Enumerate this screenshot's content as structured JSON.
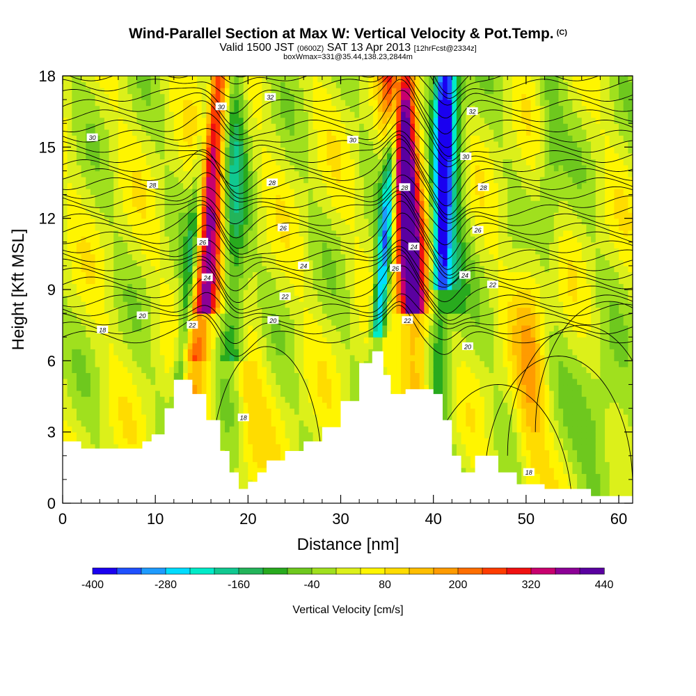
{
  "header": {
    "title_main": "Wind-Parallel Section at Max W: Vertical Velocity & Pot.Temp.",
    "title_mark": "(C)",
    "valid_prefix": "Valid 1500 JST",
    "valid_utc": "(0600Z)",
    "valid_date": "SAT 13 Apr 2013",
    "forecast_tag": "[12hrFcst@2334z]",
    "boxw": "boxWmax=331@35.44,138.23,2844m"
  },
  "colorbar": {
    "colors": [
      "#1a00f0",
      "#1f50ff",
      "#1e9bff",
      "#00dcff",
      "#00ebc8",
      "#10c890",
      "#23b45a",
      "#28aa1e",
      "#6ec81e",
      "#a0e01e",
      "#dcf01a",
      "#fff500",
      "#ffdc00",
      "#ffbe00",
      "#ff9b00",
      "#ff6e00",
      "#ff3c00",
      "#f01010",
      "#c8006e",
      "#8c0096",
      "#5a00a0"
    ],
    "tick_labels": [
      "-400",
      "-280",
      "-160",
      "-40",
      "80",
      "200",
      "320",
      "440"
    ],
    "title": "Vertical Velocity [cm/s]"
  },
  "chart_data": {
    "type": "heatmap",
    "xlabel": "Distance [nm]",
    "ylabel": "Height [Kft MSL]",
    "xlim": [
      0,
      61.5
    ],
    "ylim": [
      0,
      18
    ],
    "xticks": [
      0,
      10,
      20,
      30,
      40,
      50,
      60
    ],
    "yticks": [
      0,
      3,
      6,
      9,
      12,
      15,
      18
    ],
    "fill_variable": "Vertical Velocity [cm/s]",
    "fill_levels": [
      -400,
      -360,
      -320,
      -280,
      -240,
      -200,
      -160,
      -120,
      -80,
      -40,
      0,
      40,
      80,
      120,
      160,
      200,
      240,
      280,
      320,
      360,
      400,
      440
    ],
    "line_variable": "Pot.Temp.",
    "contour_labels": [
      {
        "text": "30",
        "x": 3.2,
        "y": 15.4
      },
      {
        "text": "28",
        "x": 9.7,
        "y": 13.4
      },
      {
        "text": "20",
        "x": 8.6,
        "y": 7.9
      },
      {
        "text": "18",
        "x": 4.3,
        "y": 7.3
      },
      {
        "text": "30",
        "x": 17.1,
        "y": 16.7
      },
      {
        "text": "32",
        "x": 22.4,
        "y": 17.1
      },
      {
        "text": "28",
        "x": 22.6,
        "y": 13.5
      },
      {
        "text": "26",
        "x": 23.8,
        "y": 11.6
      },
      {
        "text": "26",
        "x": 15.1,
        "y": 11.0
      },
      {
        "text": "24",
        "x": 15.6,
        "y": 9.5
      },
      {
        "text": "24",
        "x": 26.0,
        "y": 10.0
      },
      {
        "text": "22",
        "x": 24.0,
        "y": 8.7
      },
      {
        "text": "20",
        "x": 22.7,
        "y": 7.7
      },
      {
        "text": "22",
        "x": 14.0,
        "y": 7.5
      },
      {
        "text": "18",
        "x": 19.5,
        "y": 3.6
      },
      {
        "text": "30",
        "x": 31.3,
        "y": 15.3
      },
      {
        "text": "28",
        "x": 36.9,
        "y": 13.3
      },
      {
        "text": "24",
        "x": 37.9,
        "y": 10.8
      },
      {
        "text": "26",
        "x": 35.9,
        "y": 9.9
      },
      {
        "text": "22",
        "x": 37.2,
        "y": 7.7
      },
      {
        "text": "32",
        "x": 44.2,
        "y": 16.5
      },
      {
        "text": "30",
        "x": 43.5,
        "y": 14.6
      },
      {
        "text": "28",
        "x": 45.4,
        "y": 13.3
      },
      {
        "text": "26",
        "x": 44.8,
        "y": 11.5
      },
      {
        "text": "24",
        "x": 43.4,
        "y": 9.6
      },
      {
        "text": "22",
        "x": 46.4,
        "y": 9.2
      },
      {
        "text": "20",
        "x": 43.7,
        "y": 6.6
      },
      {
        "text": "18",
        "x": 50.3,
        "y": 1.3
      }
    ],
    "terrain_ceiling_kft": [
      {
        "x": 0,
        "y": 2.6
      },
      {
        "x": 2,
        "y": 2.3
      },
      {
        "x": 8.6,
        "y": 2.6
      },
      {
        "x": 9.6,
        "y": 2.9
      },
      {
        "x": 11,
        "y": 4.0
      },
      {
        "x": 12,
        "y": 5.2
      },
      {
        "x": 14,
        "y": 4.6
      },
      {
        "x": 15.5,
        "y": 3.5
      },
      {
        "x": 17,
        "y": 2.2
      },
      {
        "x": 18,
        "y": 1.3
      },
      {
        "x": 19,
        "y": 0.6
      },
      {
        "x": 20,
        "y": 0.9
      },
      {
        "x": 21,
        "y": 1.3
      },
      {
        "x": 22,
        "y": 1.8
      },
      {
        "x": 24,
        "y": 2.2
      },
      {
        "x": 26,
        "y": 2.6
      },
      {
        "x": 28,
        "y": 3.2
      },
      {
        "x": 30,
        "y": 4.3
      },
      {
        "x": 32,
        "y": 5.9
      },
      {
        "x": 33.4,
        "y": 6.4
      },
      {
        "x": 34.6,
        "y": 5.4
      },
      {
        "x": 35.4,
        "y": 4.6
      },
      {
        "x": 37,
        "y": 4.8
      },
      {
        "x": 40,
        "y": 4.6
      },
      {
        "x": 41,
        "y": 3.5
      },
      {
        "x": 42,
        "y": 2.0
      },
      {
        "x": 43,
        "y": 1.3
      },
      {
        "x": 44.5,
        "y": 2.0
      },
      {
        "x": 47,
        "y": 1.3
      },
      {
        "x": 49,
        "y": 0.8
      },
      {
        "x": 52,
        "y": 0.6
      },
      {
        "x": 57,
        "y": 0.3
      },
      {
        "x": 61.5,
        "y": 0.3
      }
    ]
  }
}
